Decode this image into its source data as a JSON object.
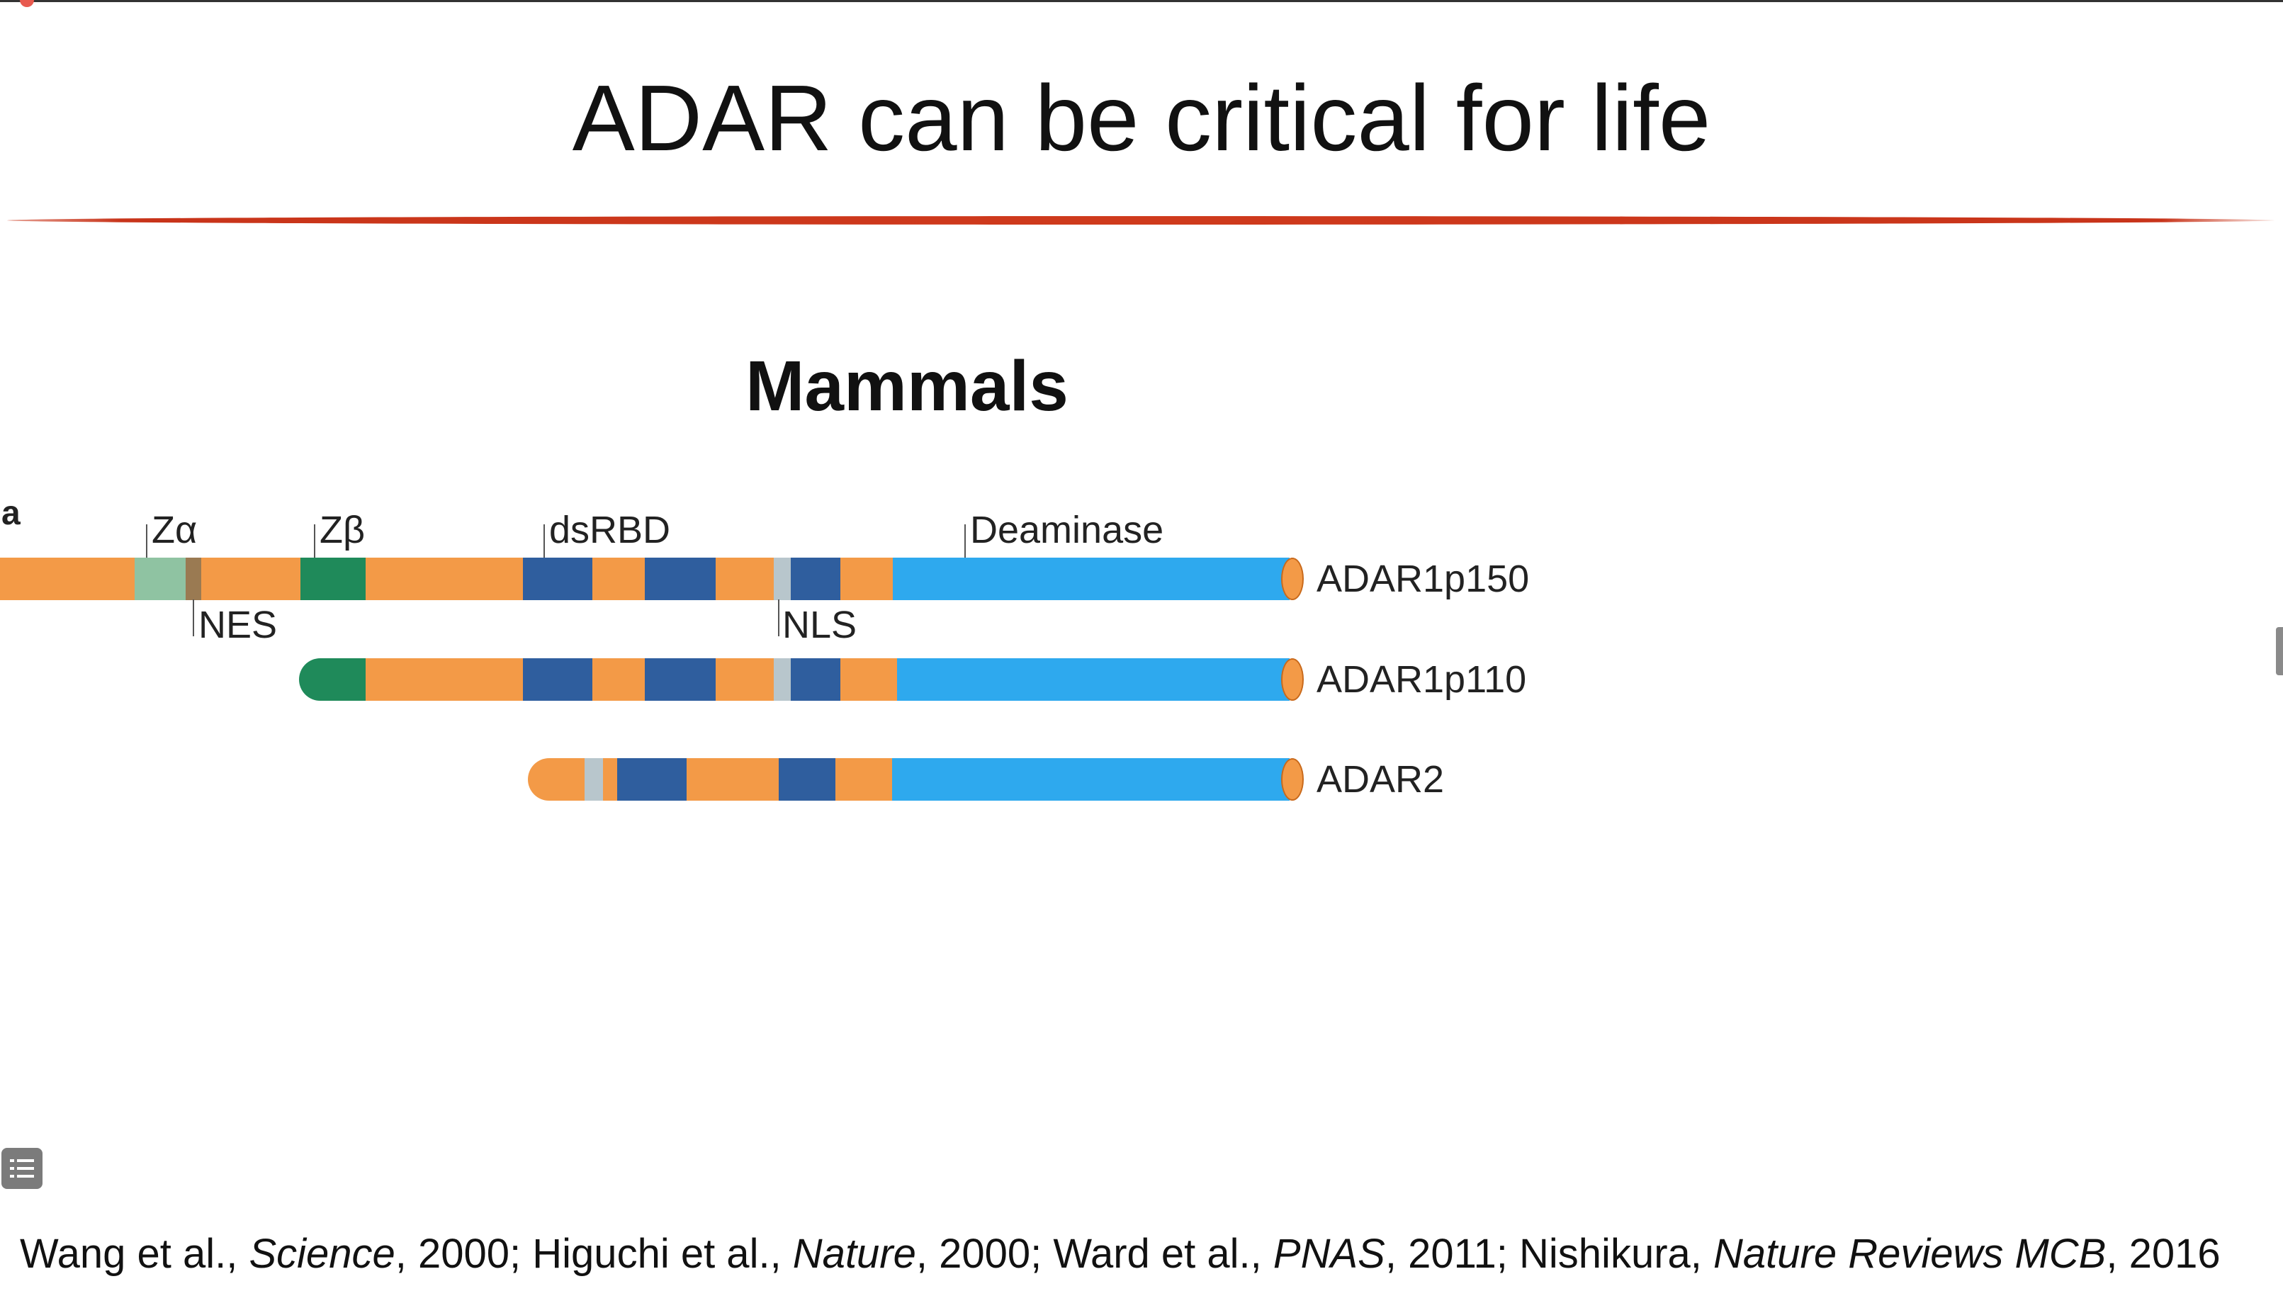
{
  "slide": {
    "title": "ADAR can be critical for life",
    "subtitle": "Mammals",
    "panel_letter": "a"
  },
  "domains": {
    "zalpha": "Zα",
    "zbeta": "Zβ",
    "dsrbd": "dsRBD",
    "deaminase": "Deaminase",
    "nes": "NES",
    "nls": "NLS"
  },
  "proteins": [
    {
      "name": "ADAR1p150"
    },
    {
      "name": "ADAR1p110"
    },
    {
      "name": "ADAR2"
    }
  ],
  "colors": {
    "orange": "#f39a47",
    "dark_blue": "#2f5e9e",
    "light_blue": "#2ea9ee",
    "green": "#1f8a5a",
    "pale_green": "#8fc3a2",
    "grey": "#b8c6cc",
    "title_rule": "#cf3a1c"
  },
  "citation": {
    "p1": "Wang et al., ",
    "j1": "Science",
    "p2": ", 2000; Higuchi et al., ",
    "j2": "Nature",
    "p3": ", 2000; Ward et al., ",
    "j3": "PNAS",
    "p4": ", 2011; Nishikura, ",
    "j4": "Nature Reviews MCB",
    "p5": ", 2016"
  },
  "icons": {
    "menu": "list-icon",
    "recording": "record-dot-icon"
  }
}
